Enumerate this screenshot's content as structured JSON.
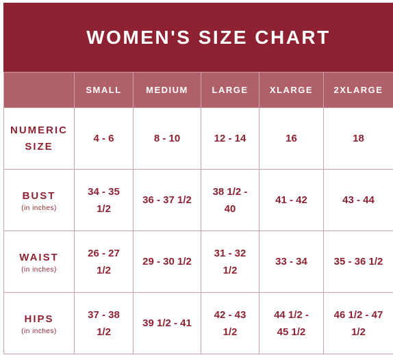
{
  "title": "WOMEN'S SIZE CHART",
  "columns": [
    "SMALL",
    "MEDIUM",
    "LARGE",
    "XLARGE",
    "2XLARGE"
  ],
  "rows": [
    {
      "label": "NUMERIC SIZE",
      "label_lines": [
        "NUMERIC",
        "SIZE"
      ],
      "note": "",
      "cells": [
        [
          "4 - 6"
        ],
        [
          "8 - 10"
        ],
        [
          "12 - 14"
        ],
        [
          "16"
        ],
        [
          "18"
        ]
      ]
    },
    {
      "label": "BUST",
      "label_lines": [
        "BUST"
      ],
      "note": "(in inches)",
      "cells": [
        [
          "34 - 35",
          "1/2"
        ],
        [
          "36 - 37 1/2"
        ],
        [
          "38 1/2 -",
          "40"
        ],
        [
          "41 - 42"
        ],
        [
          "43 - 44"
        ]
      ]
    },
    {
      "label": "WAIST",
      "label_lines": [
        "WAIST"
      ],
      "note": "(in inches)",
      "cells": [
        [
          "26 - 27",
          "1/2"
        ],
        [
          "29 - 30 1/2"
        ],
        [
          "31 - 32",
          "1/2"
        ],
        [
          "33 - 34"
        ],
        [
          "35 - 36 1/2"
        ]
      ]
    },
    {
      "label": "HIPS",
      "label_lines": [
        "HIPS"
      ],
      "note": "(in inches)",
      "cells": [
        [
          "37 - 38",
          "1/2"
        ],
        [
          "39 1/2 - 41"
        ],
        [
          "42 - 43",
          "1/2"
        ],
        [
          "44 1/2 -",
          "45 1/2"
        ],
        [
          "46 1/2 - 47",
          "1/2"
        ]
      ]
    }
  ],
  "colors": {
    "brand": "#8e2232",
    "header": "#b06068",
    "border": "#c9a3a8"
  }
}
